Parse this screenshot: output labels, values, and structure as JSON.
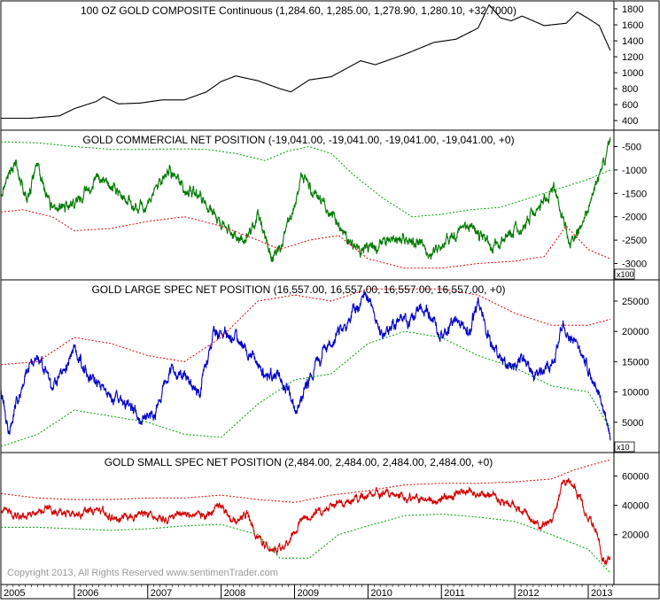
{
  "colors": {
    "price": "#000000",
    "commercial": "#007a00",
    "large_spec": "#0000cc",
    "small_spec": "#d40000",
    "band_green": "#00a000",
    "band_red": "#e00000",
    "frame": "#000000",
    "copyright": "#999999"
  },
  "copyright": "Copyright 2013, All Rights Reserved  www.sentimenTrader.com",
  "x_axis": {
    "years": [
      "2005",
      "2006",
      "2007",
      "2008",
      "2009",
      "2010",
      "2011",
      "2012",
      "2013"
    ],
    "start": 2005.0,
    "end": 2013.35
  },
  "chart_data": [
    {
      "type": "line",
      "title": "100 OZ GOLD COMPOSITE Continuous (1,284.60, 1,285.00, 1,278.90, 1,280.10, +32.7000)",
      "multiplier": "",
      "ylim": [
        280,
        1900
      ],
      "yticks": [
        400,
        600,
        800,
        1000,
        1200,
        1400,
        1600,
        1800
      ],
      "ytick_labels": [
        "400",
        "600",
        "800",
        "1000",
        "1200",
        "1400",
        "1600",
        "1800"
      ],
      "series": [
        {
          "color_key": "price",
          "style": "solid",
          "noise": 0.008,
          "seed": 11,
          "x": [
            2005.0,
            2005.4,
            2005.8,
            2006.0,
            2006.3,
            2006.4,
            2006.6,
            2006.9,
            2007.2,
            2007.5,
            2007.8,
            2008.0,
            2008.2,
            2008.5,
            2008.8,
            2008.95,
            2009.2,
            2009.5,
            2009.9,
            2010.1,
            2010.5,
            2010.9,
            2011.2,
            2011.5,
            2011.65,
            2011.8,
            2011.95,
            2012.1,
            2012.4,
            2012.7,
            2012.85,
            2013.0,
            2013.15,
            2013.3
          ],
          "y": [
            430,
            430,
            460,
            550,
            640,
            700,
            610,
            620,
            660,
            660,
            760,
            890,
            960,
            900,
            800,
            760,
            910,
            950,
            1150,
            1100,
            1230,
            1380,
            1420,
            1560,
            1850,
            1690,
            1650,
            1710,
            1590,
            1620,
            1760,
            1680,
            1590,
            1280
          ]
        }
      ]
    },
    {
      "type": "line",
      "title": "GOLD COMMERCIAL NET POSITION (-19,041.00, -19,041.00, -19,041.00, -19,041.00, +0)",
      "multiplier": "x100",
      "ylim": [
        -3350,
        -150
      ],
      "yticks": [
        -500,
        -1000,
        -1500,
        -2000,
        -2500,
        -3000
      ],
      "ytick_labels": [
        "-500",
        "-1000",
        "-1500",
        "-2000",
        "-2500",
        "-3000"
      ],
      "series": [
        {
          "color_key": "commercial",
          "style": "solid",
          "noise": 160,
          "seed": 21,
          "x": [
            2005.0,
            2005.2,
            2005.35,
            2005.5,
            2005.7,
            2006.0,
            2006.3,
            2006.5,
            2006.8,
            2007.0,
            2007.3,
            2007.5,
            2007.8,
            2008.0,
            2008.3,
            2008.5,
            2008.7,
            2008.9,
            2009.1,
            2009.3,
            2009.6,
            2009.8,
            2010.0,
            2010.3,
            2010.6,
            2010.9,
            2011.1,
            2011.4,
            2011.7,
            2011.9,
            2012.1,
            2012.3,
            2012.55,
            2012.75,
            2012.95,
            2013.1,
            2013.25,
            2013.3
          ],
          "y": [
            -1500,
            -800,
            -1600,
            -900,
            -1900,
            -1700,
            -1200,
            -1300,
            -1800,
            -1700,
            -1000,
            -1400,
            -1700,
            -2200,
            -2500,
            -2000,
            -2900,
            -2300,
            -1100,
            -1500,
            -2200,
            -2700,
            -2700,
            -2500,
            -2500,
            -2800,
            -2400,
            -2200,
            -2700,
            -2400,
            -2200,
            -1800,
            -1500,
            -2600,
            -2100,
            -1400,
            -700,
            -300
          ]
        },
        {
          "color_key": "band_green",
          "style": "dotted",
          "noise": 0,
          "seed": 0,
          "x": [
            2005.0,
            2005.5,
            2006.0,
            2006.5,
            2007.0,
            2007.4,
            2007.8,
            2008.2,
            2008.6,
            2008.9,
            2009.2,
            2009.5,
            2009.8,
            2010.2,
            2010.6,
            2011.0,
            2011.4,
            2011.8,
            2012.2,
            2012.6,
            2013.0,
            2013.3
          ],
          "y": [
            -400,
            -420,
            -500,
            -560,
            -560,
            -550,
            -560,
            -650,
            -800,
            -600,
            -500,
            -650,
            -1100,
            -1600,
            -2000,
            -1950,
            -1850,
            -1800,
            -1600,
            -1400,
            -1200,
            -1000
          ]
        },
        {
          "color_key": "band_red",
          "style": "dotted",
          "noise": 0,
          "seed": 0,
          "x": [
            2005.0,
            2005.3,
            2005.7,
            2006.0,
            2006.5,
            2007.0,
            2007.5,
            2008.0,
            2008.5,
            2008.8,
            2009.2,
            2009.6,
            2010.0,
            2010.5,
            2011.0,
            2011.5,
            2012.0,
            2012.4,
            2012.7,
            2013.0,
            2013.3
          ],
          "y": [
            -1900,
            -1850,
            -2000,
            -2300,
            -2250,
            -2100,
            -2000,
            -2200,
            -2500,
            -2700,
            -2500,
            -2400,
            -2900,
            -3100,
            -3100,
            -3000,
            -2950,
            -2850,
            -2200,
            -2700,
            -2900
          ]
        }
      ]
    },
    {
      "type": "line",
      "title": "GOLD LARGE SPEC NET POSITION (16,557.00, 16,557.00, 16,557.00, 16,557.00, +0)",
      "multiplier": "x10",
      "ylim": [
        0,
        28500
      ],
      "yticks": [
        5000,
        10000,
        15000,
        20000,
        25000
      ],
      "ytick_labels": [
        "5000",
        "10000",
        "15000",
        "20000",
        "25000"
      ],
      "series": [
        {
          "color_key": "large_spec",
          "style": "solid",
          "noise": 1400,
          "seed": 31,
          "x": [
            2005.0,
            2005.1,
            2005.3,
            2005.5,
            2005.7,
            2006.0,
            2006.2,
            2006.4,
            2006.7,
            2006.9,
            2007.1,
            2007.3,
            2007.5,
            2007.7,
            2007.9,
            2008.2,
            2008.4,
            2008.6,
            2008.8,
            2009.0,
            2009.2,
            2009.4,
            2009.6,
            2009.8,
            2010.0,
            2010.2,
            2010.4,
            2010.6,
            2010.8,
            2011.0,
            2011.2,
            2011.4,
            2011.5,
            2011.7,
            2011.9,
            2012.1,
            2012.3,
            2012.5,
            2012.65,
            2012.8,
            2013.0,
            2013.15,
            2013.3
          ],
          "y": [
            11000,
            3000,
            12000,
            16000,
            10000,
            17000,
            13000,
            10000,
            8000,
            6000,
            7000,
            13000,
            13000,
            10000,
            20000,
            19000,
            17000,
            12000,
            13000,
            7000,
            12000,
            17000,
            20000,
            23000,
            26000,
            19000,
            22000,
            22000,
            24000,
            19000,
            22000,
            20000,
            25000,
            17000,
            14000,
            15000,
            13000,
            14000,
            21000,
            18000,
            14000,
            10000,
            2000
          ]
        },
        {
          "color_key": "band_red",
          "style": "dotted",
          "noise": 0,
          "seed": 0,
          "x": [
            2005.0,
            2005.5,
            2006.0,
            2006.5,
            2007.0,
            2007.5,
            2008.0,
            2008.5,
            2009.0,
            2009.5,
            2010.0,
            2010.5,
            2011.0,
            2011.5,
            2012.0,
            2012.5,
            2013.0,
            2013.3
          ],
          "y": [
            14500,
            15000,
            19000,
            18000,
            16000,
            15000,
            19000,
            25000,
            26000,
            25000,
            27000,
            27000,
            27000,
            26000,
            23000,
            21000,
            21000,
            22000
          ]
        },
        {
          "color_key": "band_green",
          "style": "dotted",
          "noise": 0,
          "seed": 0,
          "x": [
            2005.0,
            2005.5,
            2006.0,
            2006.5,
            2007.0,
            2007.5,
            2008.0,
            2008.5,
            2009.0,
            2009.5,
            2010.0,
            2010.5,
            2011.0,
            2011.5,
            2012.0,
            2012.5,
            2013.0,
            2013.3
          ],
          "y": [
            1000,
            3000,
            7000,
            6000,
            5000,
            3000,
            2500,
            8000,
            12000,
            13000,
            18000,
            20000,
            19000,
            16000,
            14000,
            11000,
            10000,
            4000
          ]
        }
      ]
    },
    {
      "type": "line",
      "title": "GOLD SMALL SPEC NET POSITION (2,484.00, 2,484.00, 2,484.00, 2,484.00, +0)",
      "multiplier": "",
      "ylim": [
        -14000,
        76000
      ],
      "yticks": [
        20000,
        40000,
        60000
      ],
      "ytick_labels": [
        "20000",
        "40000",
        "60000"
      ],
      "series": [
        {
          "color_key": "small_spec",
          "style": "solid",
          "noise": 3500,
          "seed": 41,
          "x": [
            2005.0,
            2005.3,
            2005.6,
            2006.0,
            2006.3,
            2006.6,
            2006.9,
            2007.2,
            2007.5,
            2007.8,
            2008.0,
            2008.2,
            2008.35,
            2008.5,
            2008.7,
            2008.9,
            2009.1,
            2009.3,
            2009.5,
            2009.8,
            2010.0,
            2010.2,
            2010.5,
            2010.8,
            2011.0,
            2011.3,
            2011.6,
            2011.9,
            2012.1,
            2012.3,
            2012.5,
            2012.65,
            2012.8,
            2012.95,
            2013.1,
            2013.2,
            2013.3
          ],
          "y": [
            36000,
            33000,
            38000,
            33000,
            36000,
            30000,
            35000,
            30000,
            35000,
            33000,
            38000,
            27000,
            34000,
            18000,
            8000,
            14000,
            30000,
            36000,
            38000,
            43000,
            48000,
            47000,
            46000,
            43000,
            45000,
            50000,
            47000,
            42000,
            35000,
            27000,
            28000,
            56000,
            55000,
            36000,
            24000,
            3000,
            3000
          ]
        },
        {
          "color_key": "band_red",
          "style": "dotted",
          "noise": 0,
          "seed": 0,
          "x": [
            2005.0,
            2005.5,
            2006.0,
            2006.5,
            2007.0,
            2007.5,
            2008.0,
            2008.5,
            2009.0,
            2009.5,
            2010.0,
            2010.5,
            2011.0,
            2011.5,
            2012.0,
            2012.5,
            2012.8,
            2013.0,
            2013.3
          ],
          "y": [
            48000,
            45000,
            44000,
            44000,
            45000,
            45000,
            47000,
            44000,
            42000,
            47000,
            50000,
            54000,
            55000,
            55000,
            56000,
            58000,
            64000,
            67000,
            71000
          ]
        },
        {
          "color_key": "band_green",
          "style": "dotted",
          "noise": 0,
          "seed": 0,
          "x": [
            2005.0,
            2005.5,
            2006.0,
            2006.5,
            2007.0,
            2007.5,
            2008.0,
            2008.5,
            2008.8,
            2009.2,
            2009.6,
            2010.0,
            2010.5,
            2011.0,
            2011.5,
            2012.0,
            2012.5,
            2013.0,
            2013.3
          ],
          "y": [
            25000,
            25000,
            24000,
            23000,
            24000,
            26000,
            27000,
            20000,
            4000,
            4000,
            20000,
            26000,
            33000,
            34000,
            32000,
            29000,
            20000,
            10000,
            -6000
          ]
        }
      ]
    }
  ]
}
